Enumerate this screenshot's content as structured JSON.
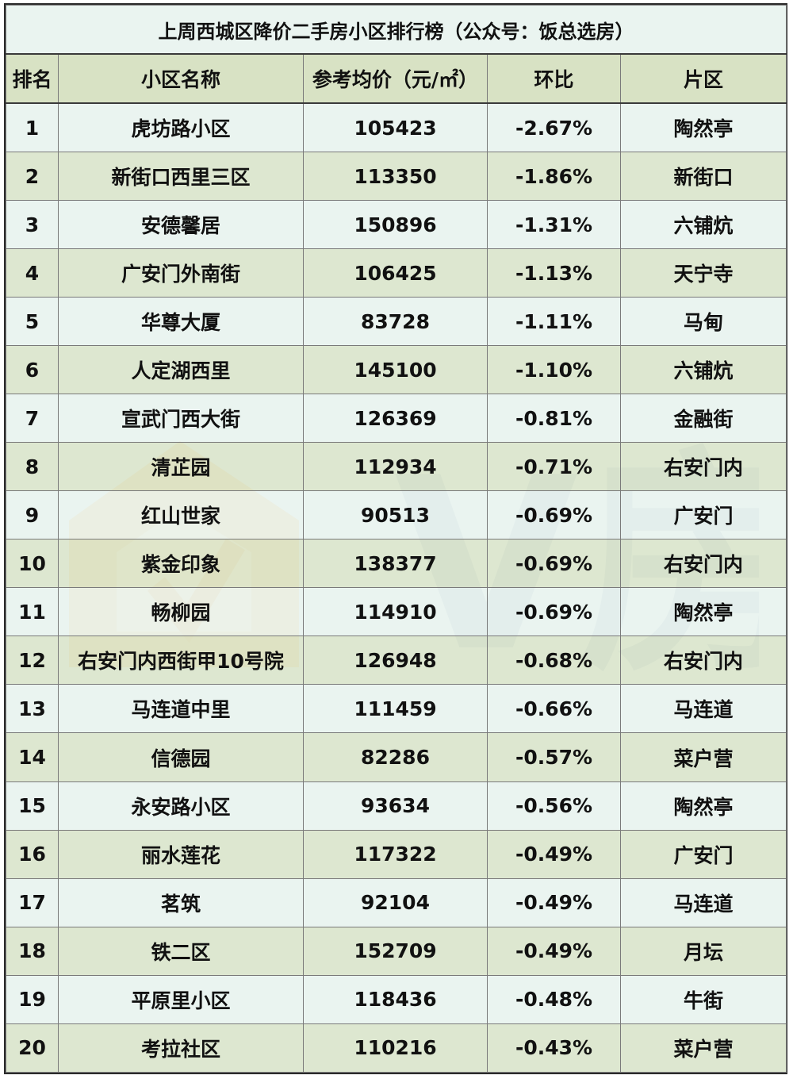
{
  "title": "上周西城区降价二手房小区排行榜（公众号：饭总选房）",
  "headers": [
    "排名",
    "小区名称",
    "参考均价（元/㎡）",
    "环比",
    "片区"
  ],
  "rows": [
    [
      "1",
      "虎坊路小区",
      "105423",
      "-2.67%",
      "陶然亭"
    ],
    [
      "2",
      "新街口西里三区",
      "113350",
      "-1.86%",
      "新街口"
    ],
    [
      "3",
      "安德馨居",
      "150896",
      "-1.31%",
      "六铺炕"
    ],
    [
      "4",
      "广安门外南街",
      "106425",
      "-1.13%",
      "天宁寺"
    ],
    [
      "5",
      "华尊大厦",
      "83728",
      "-1.11%",
      "马甸"
    ],
    [
      "6",
      "人定湖西里",
      "145100",
      "-1.10%",
      "六铺炕"
    ],
    [
      "7",
      "宣武门西大街",
      "126369",
      "-0.81%",
      "金融街"
    ],
    [
      "8",
      "清芷园",
      "112934",
      "-0.71%",
      "右安门内"
    ],
    [
      "9",
      "红山世家",
      "90513",
      "-0.69%",
      "广安门"
    ],
    [
      "10",
      "紫金印象",
      "138377",
      "-0.69%",
      "右安门内"
    ],
    [
      "11",
      "畅柳园",
      "114910",
      "-0.69%",
      "陶然亭"
    ],
    [
      "12",
      "右安门内西街甲10号院",
      "126948",
      "-0.68%",
      "右安门内"
    ],
    [
      "13",
      "马连道中里",
      "111459",
      "-0.66%",
      "马连道"
    ],
    [
      "14",
      "信德园",
      "82286",
      "-0.57%",
      "菜户营"
    ],
    [
      "15",
      "永安路小区",
      "93634",
      "-0.56%",
      "陶然亭"
    ],
    [
      "16",
      "丽水莲花",
      "117322",
      "-0.49%",
      "广安门"
    ],
    [
      "17",
      "茗筑",
      "92104",
      "-0.49%",
      "马连道"
    ],
    [
      "18",
      "铁二区",
      "152709",
      "-0.49%",
      "月坛"
    ],
    [
      "19",
      "平原里小区",
      "118436",
      "-0.48%",
      "牛街"
    ],
    [
      "20",
      "考拉社区",
      "110216",
      "-0.43%",
      "菜户营"
    ]
  ],
  "watermark": {
    "text": "V房",
    "icon": "house-logo-icon"
  },
  "colors": {
    "row_light": "#eaf4f0",
    "row_dark": "#d8e2c4",
    "border": "#7a7a7a",
    "watermark_orange": "#f2c98a",
    "watermark_blue": "#b9ccd6"
  }
}
